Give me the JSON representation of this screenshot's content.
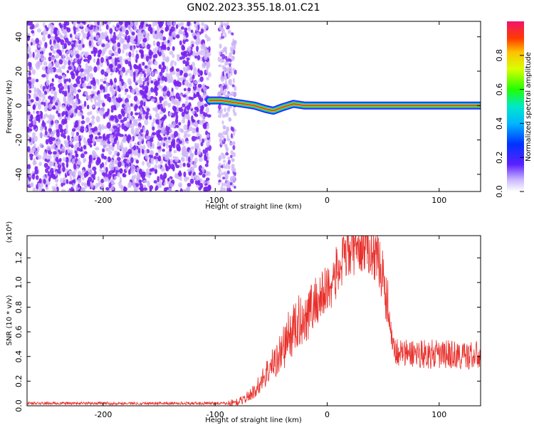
{
  "title": "GN02.2023.355.18.01.C21",
  "colors": {
    "snr_line": "#e8302b",
    "background_scatter": "#7a22f0",
    "faint_scatter": "#cdb6f6",
    "ridge": "#d63a3a"
  },
  "chart_data": [
    {
      "type": "heatmap",
      "title": "",
      "xlabel": "Height of straight line (km)",
      "ylabel": "Frequency (Hz)",
      "xlim": [
        -268,
        137
      ],
      "ylim": [
        -50,
        49
      ],
      "x_ticks": [
        -200,
        -100,
        0,
        100
      ],
      "x_tick_labels": [
        "-200",
        "-100",
        "0",
        "100"
      ],
      "y_ticks": [
        -40,
        -20,
        0,
        20,
        40
      ],
      "y_tick_labels": [
        "-40",
        "-20",
        "0",
        "20",
        "40"
      ],
      "ridge": {
        "x": [
          -105,
          -95,
          -85,
          -75,
          -65,
          -55,
          -48,
          -40,
          -30,
          -20,
          0,
          20,
          40,
          60,
          80,
          100,
          137
        ],
        "y": [
          3,
          3,
          2,
          1,
          0,
          -2,
          -3,
          -1,
          1,
          0,
          0,
          0,
          0,
          0,
          0,
          0,
          0
        ]
      },
      "colorbar": {
        "label": "Normalized spectral amplitude",
        "range": [
          0,
          1
        ],
        "ticks": [
          0.0,
          0.2,
          0.4,
          0.6,
          0.8
        ],
        "tick_labels": [
          "0.0",
          "0.2",
          "0.4",
          "0.6",
          "0.8"
        ]
      }
    },
    {
      "type": "line",
      "title": "",
      "xlabel": "Height of straight line (km)",
      "ylabel": "SNR (10 * v/v)",
      "y_multiplier": "(x10⁴)",
      "xlim": [
        -268,
        137
      ],
      "ylim": [
        0,
        1.38
      ],
      "x_ticks": [
        -200,
        -100,
        0,
        100
      ],
      "x_tick_labels": [
        "-200",
        "-100",
        "0",
        "100"
      ],
      "y_ticks": [
        0.0,
        0.2,
        0.4,
        0.6,
        0.8,
        1.0,
        1.2
      ],
      "y_tick_labels": [
        "0.0",
        "0.2",
        "0.4",
        "0.6",
        "0.8",
        "1.0",
        "1.2"
      ],
      "series": [
        {
          "x": [
            -268,
            -250,
            -200,
            -150,
            -100,
            -90,
            -80,
            -75,
            -70,
            -65,
            -60,
            -55,
            -50,
            -45,
            -40,
            -35,
            -30,
            -25,
            -20,
            -15,
            -10,
            -5,
            0,
            5,
            10,
            15,
            20,
            25,
            30,
            35,
            40,
            45,
            50,
            55,
            60,
            70,
            80,
            90,
            100,
            110,
            120,
            130,
            137
          ],
          "y": [
            0.02,
            0.02,
            0.02,
            0.02,
            0.02,
            0.02,
            0.03,
            0.05,
            0.08,
            0.12,
            0.18,
            0.26,
            0.32,
            0.38,
            0.46,
            0.55,
            0.62,
            0.68,
            0.72,
            0.78,
            0.85,
            0.88,
            0.95,
            1.02,
            1.1,
            1.18,
            1.25,
            1.28,
            1.3,
            1.29,
            1.27,
            1.2,
            1.05,
            0.75,
            0.45,
            0.42,
            0.43,
            0.42,
            0.41,
            0.42,
            0.4,
            0.41,
            0.4
          ]
        }
      ]
    }
  ]
}
